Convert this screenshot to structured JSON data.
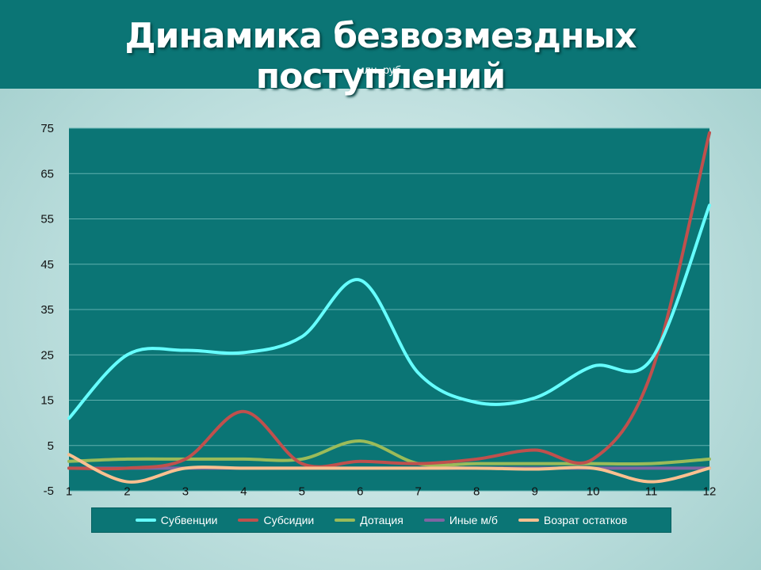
{
  "header": {
    "title": "Динамика безвозмездных поступлений",
    "subtitle": "млн. руб."
  },
  "colors": {
    "header_bg": "#0b7575",
    "plot_bg": "#0b7575",
    "grid": "#5fb0ae"
  },
  "chart_data": {
    "type": "line",
    "smooth": true,
    "grid": true,
    "legend_position": "bottom",
    "x": [
      "1",
      "2",
      "3",
      "4",
      "5",
      "6",
      "7",
      "8",
      "9",
      "10",
      "11",
      "12"
    ],
    "yticks": [
      "75",
      "65",
      "55",
      "45",
      "35",
      "25",
      "15",
      "5",
      "-5"
    ],
    "ylim": [
      -5,
      75
    ],
    "series": [
      {
        "name": "Субвенции",
        "color": "#66ffff",
        "values": [
          11,
          25,
          26,
          25.5,
          29,
          41.5,
          21,
          14.5,
          15.5,
          22.5,
          24,
          58
        ]
      },
      {
        "name": "Субсидии",
        "color": "#c0504d",
        "values": [
          0,
          0,
          2,
          12.5,
          1,
          1.5,
          1,
          2,
          4,
          2,
          21,
          74
        ]
      },
      {
        "name": "Дотация",
        "color": "#9bbb59",
        "values": [
          1.5,
          2,
          2,
          2,
          2,
          6,
          1,
          1,
          1,
          1,
          1,
          2
        ]
      },
      {
        "name": "Иные м/б",
        "color": "#8064a2",
        "values": [
          0,
          0,
          0,
          0,
          0,
          0,
          0,
          0,
          0,
          0,
          0,
          0
        ]
      },
      {
        "name": "Возрат остатков",
        "color": "#fac090",
        "values": [
          3,
          -3,
          0,
          0,
          0,
          0,
          0,
          0,
          -0.2,
          0,
          -3,
          0
        ]
      }
    ]
  }
}
